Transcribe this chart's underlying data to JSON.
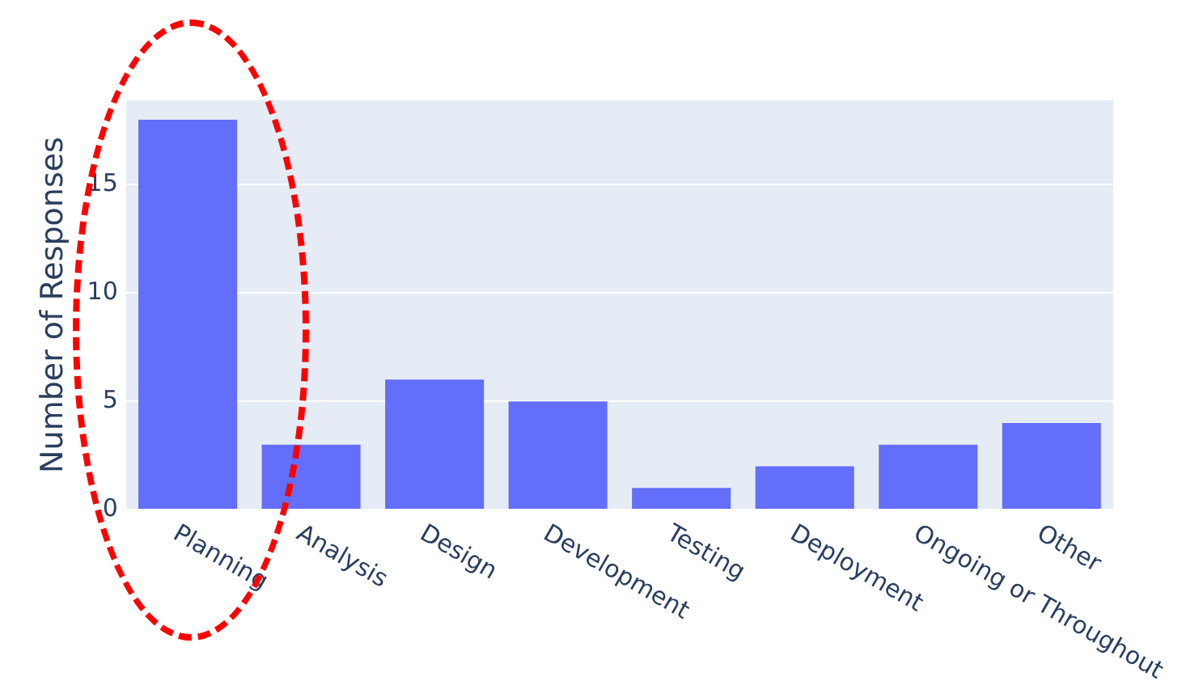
{
  "chart_data": {
    "type": "bar",
    "ylabel": "Number of Responses",
    "categories": [
      "Planning",
      "Analysis",
      "Design",
      "Development",
      "Testing",
      "Deployment",
      "Ongoing or Throughout",
      "Other"
    ],
    "values": [
      18,
      3,
      6,
      5,
      1,
      2,
      3,
      4
    ],
    "color": "#636efa",
    "ylim": [
      0,
      18.9
    ],
    "yticks": [
      0,
      5,
      10,
      15
    ],
    "grid": "y",
    "legend": false
  }
}
